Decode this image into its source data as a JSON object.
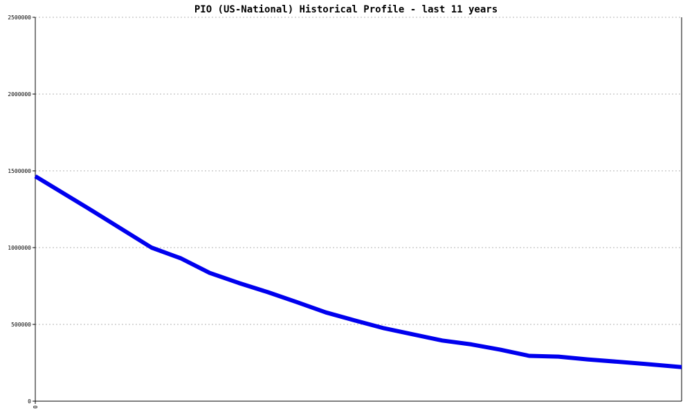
{
  "chart_data": {
    "type": "line",
    "title": "PIO (US-National) Historical Profile - last 11 years",
    "xlabel": "",
    "ylabel": "",
    "ylim": [
      0,
      2500000
    ],
    "xlim": [
      0,
      1
    ],
    "yticks": [
      "0",
      "500000",
      "1000000",
      "1500000",
      "2000000",
      "2500000"
    ],
    "yticks_values": [
      0,
      500000,
      1000000,
      1500000,
      2000000,
      2500000
    ],
    "xtick_labels": [
      "0"
    ],
    "grid": true,
    "series": [
      {
        "color": "#0000ee",
        "x": [
          0.0,
          0.0899,
          0.1799,
          0.2253,
          0.2698,
          0.3148,
          0.3597,
          0.4047,
          0.4496,
          0.4946,
          0.5396,
          0.5845,
          0.6295,
          0.6745,
          0.7195,
          0.7644,
          0.8094,
          0.8544,
          0.8994,
          0.9443,
          1.0
        ],
        "y": [
          1465000,
          1235000,
          1000000,
          930000,
          835000,
          770000,
          710000,
          645000,
          578000,
          525000,
          475000,
          435000,
          395000,
          370000,
          335000,
          295000,
          290000,
          272000,
          257000,
          242000,
          222000
        ]
      }
    ]
  }
}
